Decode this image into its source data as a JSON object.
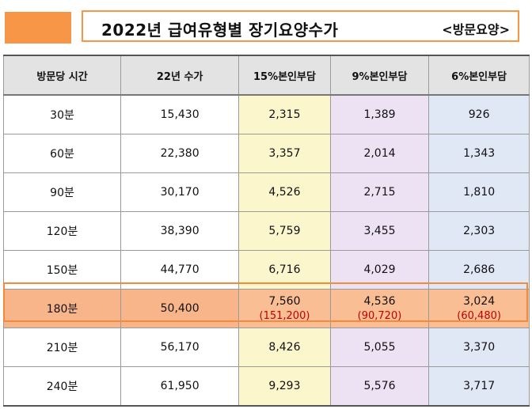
{
  "colors": {
    "accent": "#f79646",
    "header_bg": "#e3e3e3",
    "col15": "#fbf6cc",
    "col9": "#ede2f3",
    "col6": "#e0e7f5",
    "highlight": "#f9be94",
    "paren_text": "#c00000"
  },
  "title": {
    "main": "2022년 급여유형별 장기요양수가",
    "sub": "<방문요양>"
  },
  "table": {
    "headers": [
      "방문당 시간",
      "22년 수가",
      "15%본인부담",
      "9%본인부담",
      "6%본인부담"
    ],
    "rows": [
      {
        "time": "30분",
        "fee": "15,430",
        "p15": "2,315",
        "p9": "1,389",
        "p6": "926"
      },
      {
        "time": "60분",
        "fee": "22,380",
        "p15": "3,357",
        "p9": "2,014",
        "p6": "1,343"
      },
      {
        "time": "90분",
        "fee": "30,170",
        "p15": "4,526",
        "p9": "2,715",
        "p6": "1,810"
      },
      {
        "time": "120분",
        "fee": "38,390",
        "p15": "5,759",
        "p9": "3,455",
        "p6": "2,303"
      },
      {
        "time": "150분",
        "fee": "44,770",
        "p15": "6,716",
        "p9": "4,029",
        "p6": "2,686"
      },
      {
        "time": "180분",
        "fee": "50,400",
        "p15": "7,560",
        "p9": "4,536",
        "p6": "3,024",
        "p15_sub": "(151,200)",
        "p9_sub": "(90,720)",
        "p6_sub": "(60,480)"
      },
      {
        "time": "210분",
        "fee": "56,170",
        "p15": "8,426",
        "p9": "5,055",
        "p6": "3,370"
      },
      {
        "time": "240분",
        "fee": "61,950",
        "p15": "9,293",
        "p9": "5,576",
        "p6": "3,717"
      }
    ]
  }
}
